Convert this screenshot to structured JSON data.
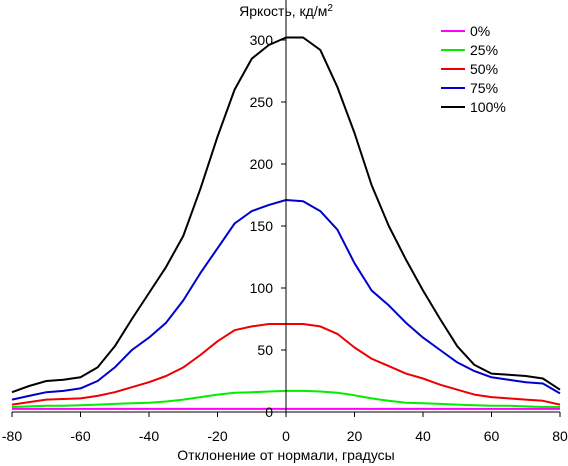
{
  "chart_data": {
    "type": "line",
    "ylabel": "Яркость, кд/м",
    "ylabel_sup": "2",
    "xlabel": "Отклонение от нормали, градусы",
    "xlim": [
      -80,
      80
    ],
    "ylim": [
      0,
      300
    ],
    "x_ticks": [
      -80,
      -60,
      -40,
      -20,
      0,
      20,
      40,
      60,
      80
    ],
    "y_ticks": [
      0,
      50,
      100,
      150,
      200,
      250,
      300
    ],
    "grid": false,
    "legend_position": "top-right",
    "x": [
      -80,
      -75,
      -70,
      -65,
      -60,
      -55,
      -50,
      -45,
      -40,
      -35,
      -30,
      -25,
      -20,
      -15,
      -10,
      -5,
      0,
      5,
      10,
      15,
      20,
      25,
      30,
      35,
      40,
      45,
      50,
      55,
      60,
      65,
      70,
      75,
      80
    ],
    "series": [
      {
        "name": "0%",
        "color": "#ff00ff",
        "values": [
          2.5,
          2.5,
          2.5,
          2.5,
          2.5,
          2.5,
          2.5,
          2.5,
          2.5,
          2.5,
          2.5,
          2.5,
          2.5,
          2.5,
          2.5,
          2.5,
          2.5,
          2.5,
          2.5,
          2.5,
          2.5,
          2.5,
          2.5,
          2.5,
          2.5,
          2.5,
          2.5,
          2.5,
          2.5,
          2.5,
          2.5,
          2.5,
          2.5
        ]
      },
      {
        "name": "25%",
        "color": "#00ee00",
        "values": [
          4,
          4.5,
          5,
          5,
          5.5,
          6,
          6.5,
          7,
          7.5,
          8.5,
          10,
          12,
          14,
          15.5,
          16,
          16.5,
          17,
          17,
          16.5,
          15.5,
          13.5,
          11,
          9,
          7.5,
          7,
          6.5,
          6,
          5.5,
          5,
          5,
          4.5,
          4,
          4
        ]
      },
      {
        "name": "50%",
        "color": "#ee0000",
        "values": [
          6,
          8,
          10,
          10.5,
          11,
          13,
          16,
          20,
          24,
          29,
          36,
          46,
          57,
          66,
          69,
          71,
          71,
          71,
          69,
          63,
          52,
          43,
          37,
          31,
          27,
          22,
          18,
          14,
          12,
          11,
          10,
          9,
          6
        ]
      },
      {
        "name": "75%",
        "color": "#0000cc",
        "values": [
          10,
          13,
          16,
          17,
          19,
          25,
          36,
          50,
          60,
          72,
          90,
          112,
          132,
          152,
          162,
          167,
          171,
          170,
          162,
          147,
          120,
          98,
          86,
          72,
          60,
          50,
          40,
          33,
          28,
          26,
          24,
          23,
          15
        ]
      },
      {
        "name": "100%",
        "color": "#000000",
        "values": [
          16,
          21,
          25,
          26,
          28,
          36,
          53,
          75,
          96,
          117,
          142,
          180,
          222,
          260,
          285,
          296,
          302,
          302,
          292,
          262,
          225,
          183,
          150,
          123,
          98,
          75,
          53,
          38,
          31,
          30,
          29,
          27,
          18
        ]
      }
    ]
  }
}
